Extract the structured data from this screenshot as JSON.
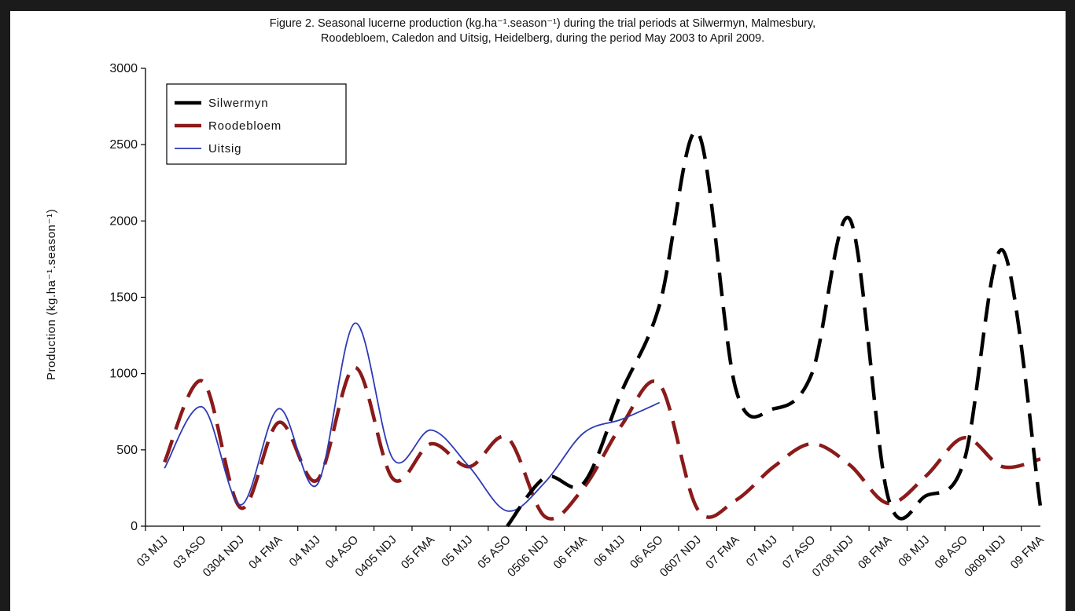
{
  "chart_data": {
    "type": "line",
    "title_lines": [
      "Figure 2.  Seasonal lucerne production (kg.ha⁻¹.season⁻¹) during the trial periods at Silwermyn, Malmesbury,",
      "Roodebloem, Caledon and Uitsig, Heidelberg, during the period May 2003 to April 2009."
    ],
    "ylabel": "Production (kg.ha⁻¹.season⁻¹)",
    "xlabel": "",
    "ylim": [
      0,
      3000
    ],
    "yticks": [
      0,
      500,
      1000,
      1500,
      2000,
      2500,
      3000
    ],
    "grid": false,
    "legend_position": "top-left",
    "categories": [
      "03 MJJ",
      "03 ASO",
      "0304 NDJ",
      "04 FMA",
      "04 MJJ",
      "04 ASO",
      "0405 NDJ",
      "05 FMA",
      "05 MJJ",
      "05 ASO",
      "0506 NDJ",
      "06 FMA",
      "06 MJJ",
      "06 ASO",
      "0607 NDJ",
      "07 FMA",
      "07 MJJ",
      "07 ASO",
      "0708 NDJ",
      "08 FMA",
      "08 MJJ",
      "08 ASO",
      "0809 NDJ",
      "09 FMA"
    ],
    "series": [
      {
        "name": "Silwermyn",
        "color": "#000000",
        "style": "long-dash",
        "values": [
          null,
          null,
          null,
          null,
          null,
          null,
          null,
          null,
          null,
          0,
          320,
          280,
          880,
          1450,
          2580,
          900,
          770,
          1000,
          2010,
          190,
          200,
          430,
          1810,
          130
        ]
      },
      {
        "name": "Roodebloem",
        "color": "#8b1a1a",
        "style": "long-dash",
        "values": [
          420,
          950,
          120,
          680,
          300,
          1040,
          310,
          540,
          390,
          580,
          60,
          250,
          660,
          930,
          110,
          170,
          390,
          540,
          400,
          150,
          330,
          580,
          390,
          440
        ]
      },
      {
        "name": "Uitsig",
        "color": "#2d3ab5",
        "style": "solid",
        "values": [
          380,
          780,
          140,
          770,
          270,
          1330,
          440,
          630,
          390,
          100,
          290,
          610,
          700,
          810,
          null,
          null,
          null,
          null,
          null,
          null,
          null,
          null,
          null,
          null
        ]
      }
    ]
  }
}
